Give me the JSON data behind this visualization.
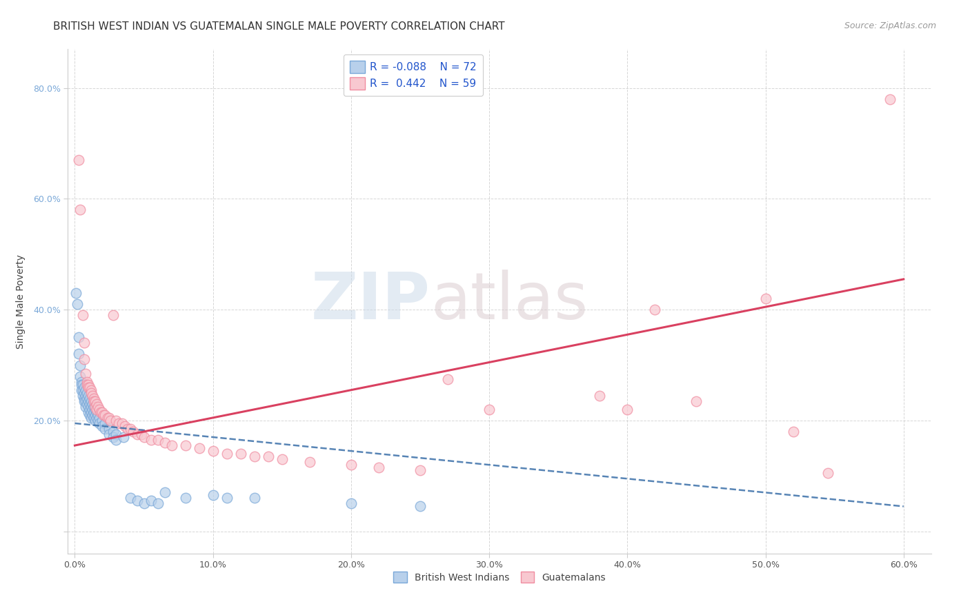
{
  "title": "BRITISH WEST INDIAN VS GUATEMALAN SINGLE MALE POVERTY CORRELATION CHART",
  "source": "Source: ZipAtlas.com",
  "ylabel": "Single Male Poverty",
  "xlabel": "",
  "watermark_zip": "ZIP",
  "watermark_atlas": "atlas",
  "xlim": [
    -0.005,
    0.62
  ],
  "ylim": [
    -0.04,
    0.87
  ],
  "xticks": [
    0.0,
    0.1,
    0.2,
    0.3,
    0.4,
    0.5,
    0.6
  ],
  "xtick_labels": [
    "0.0%",
    "10.0%",
    "20.0%",
    "30.0%",
    "40.0%",
    "50.0%",
    "60.0%"
  ],
  "yticks": [
    0.0,
    0.2,
    0.4,
    0.6,
    0.8
  ],
  "ytick_labels": [
    "",
    "20.0%",
    "40.0%",
    "60.0%",
    "80.0%"
  ],
  "blue_color": "#7aa8d8",
  "pink_color": "#f08ca0",
  "blue_fill": "#b8d0eb",
  "pink_fill": "#f8c8d0",
  "blue_line_color": "#3a6fa8",
  "pink_line_color": "#d94060",
  "grid_color": "#cccccc",
  "background_color": "#ffffff",
  "title_fontsize": 11,
  "axis_label_fontsize": 10,
  "tick_fontsize": 9,
  "legend_fontsize": 11,
  "blue_scatter": [
    [
      0.001,
      0.43
    ],
    [
      0.002,
      0.41
    ],
    [
      0.003,
      0.35
    ],
    [
      0.003,
      0.32
    ],
    [
      0.004,
      0.3
    ],
    [
      0.004,
      0.28
    ],
    [
      0.005,
      0.27
    ],
    [
      0.005,
      0.265
    ],
    [
      0.005,
      0.255
    ],
    [
      0.006,
      0.265
    ],
    [
      0.006,
      0.255
    ],
    [
      0.006,
      0.245
    ],
    [
      0.007,
      0.26
    ],
    [
      0.007,
      0.25
    ],
    [
      0.007,
      0.24
    ],
    [
      0.007,
      0.235
    ],
    [
      0.008,
      0.255
    ],
    [
      0.008,
      0.245
    ],
    [
      0.008,
      0.235
    ],
    [
      0.008,
      0.225
    ],
    [
      0.009,
      0.25
    ],
    [
      0.009,
      0.24
    ],
    [
      0.009,
      0.23
    ],
    [
      0.01,
      0.245
    ],
    [
      0.01,
      0.235
    ],
    [
      0.01,
      0.225
    ],
    [
      0.01,
      0.215
    ],
    [
      0.011,
      0.24
    ],
    [
      0.011,
      0.23
    ],
    [
      0.011,
      0.22
    ],
    [
      0.011,
      0.21
    ],
    [
      0.012,
      0.235
    ],
    [
      0.012,
      0.225
    ],
    [
      0.012,
      0.215
    ],
    [
      0.012,
      0.205
    ],
    [
      0.013,
      0.23
    ],
    [
      0.013,
      0.22
    ],
    [
      0.013,
      0.21
    ],
    [
      0.014,
      0.225
    ],
    [
      0.014,
      0.215
    ],
    [
      0.014,
      0.205
    ],
    [
      0.015,
      0.22
    ],
    [
      0.015,
      0.21
    ],
    [
      0.015,
      0.2
    ],
    [
      0.016,
      0.215
    ],
    [
      0.016,
      0.205
    ],
    [
      0.017,
      0.21
    ],
    [
      0.017,
      0.2
    ],
    [
      0.018,
      0.205
    ],
    [
      0.018,
      0.195
    ],
    [
      0.02,
      0.2
    ],
    [
      0.02,
      0.19
    ],
    [
      0.022,
      0.195
    ],
    [
      0.022,
      0.185
    ],
    [
      0.025,
      0.185
    ],
    [
      0.025,
      0.175
    ],
    [
      0.028,
      0.18
    ],
    [
      0.028,
      0.17
    ],
    [
      0.03,
      0.175
    ],
    [
      0.03,
      0.165
    ],
    [
      0.035,
      0.17
    ],
    [
      0.04,
      0.06
    ],
    [
      0.045,
      0.055
    ],
    [
      0.05,
      0.05
    ],
    [
      0.055,
      0.055
    ],
    [
      0.06,
      0.05
    ],
    [
      0.065,
      0.07
    ],
    [
      0.08,
      0.06
    ],
    [
      0.1,
      0.065
    ],
    [
      0.11,
      0.06
    ],
    [
      0.13,
      0.06
    ],
    [
      0.2,
      0.05
    ],
    [
      0.25,
      0.045
    ]
  ],
  "pink_scatter": [
    [
      0.003,
      0.67
    ],
    [
      0.004,
      0.58
    ],
    [
      0.006,
      0.39
    ],
    [
      0.007,
      0.34
    ],
    [
      0.007,
      0.31
    ],
    [
      0.008,
      0.285
    ],
    [
      0.009,
      0.27
    ],
    [
      0.009,
      0.265
    ],
    [
      0.01,
      0.265
    ],
    [
      0.01,
      0.26
    ],
    [
      0.011,
      0.26
    ],
    [
      0.012,
      0.255
    ],
    [
      0.012,
      0.25
    ],
    [
      0.013,
      0.245
    ],
    [
      0.014,
      0.24
    ],
    [
      0.014,
      0.235
    ],
    [
      0.015,
      0.235
    ],
    [
      0.015,
      0.225
    ],
    [
      0.016,
      0.23
    ],
    [
      0.016,
      0.22
    ],
    [
      0.017,
      0.225
    ],
    [
      0.018,
      0.22
    ],
    [
      0.019,
      0.215
    ],
    [
      0.02,
      0.215
    ],
    [
      0.021,
      0.21
    ],
    [
      0.022,
      0.21
    ],
    [
      0.024,
      0.205
    ],
    [
      0.025,
      0.205
    ],
    [
      0.026,
      0.2
    ],
    [
      0.028,
      0.39
    ],
    [
      0.03,
      0.2
    ],
    [
      0.032,
      0.195
    ],
    [
      0.034,
      0.195
    ],
    [
      0.036,
      0.19
    ],
    [
      0.038,
      0.185
    ],
    [
      0.04,
      0.185
    ],
    [
      0.042,
      0.18
    ],
    [
      0.045,
      0.175
    ],
    [
      0.048,
      0.175
    ],
    [
      0.05,
      0.17
    ],
    [
      0.055,
      0.165
    ],
    [
      0.06,
      0.165
    ],
    [
      0.065,
      0.16
    ],
    [
      0.07,
      0.155
    ],
    [
      0.08,
      0.155
    ],
    [
      0.09,
      0.15
    ],
    [
      0.1,
      0.145
    ],
    [
      0.11,
      0.14
    ],
    [
      0.12,
      0.14
    ],
    [
      0.13,
      0.135
    ],
    [
      0.14,
      0.135
    ],
    [
      0.15,
      0.13
    ],
    [
      0.17,
      0.125
    ],
    [
      0.2,
      0.12
    ],
    [
      0.22,
      0.115
    ],
    [
      0.25,
      0.11
    ],
    [
      0.27,
      0.275
    ],
    [
      0.3,
      0.22
    ],
    [
      0.38,
      0.245
    ],
    [
      0.4,
      0.22
    ],
    [
      0.42,
      0.4
    ],
    [
      0.45,
      0.235
    ],
    [
      0.5,
      0.42
    ],
    [
      0.52,
      0.18
    ],
    [
      0.545,
      0.105
    ],
    [
      0.59,
      0.78
    ]
  ],
  "blue_trend_intercept": 0.195,
  "blue_trend_slope": -0.25,
  "pink_trend_x0": 0.0,
  "pink_trend_y0": 0.155,
  "pink_trend_x1": 0.6,
  "pink_trend_y1": 0.455
}
